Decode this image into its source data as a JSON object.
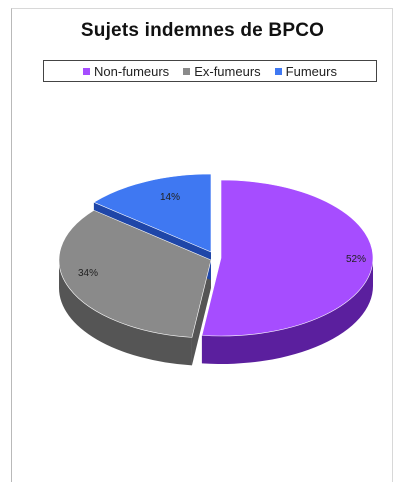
{
  "chart_data": {
    "type": "pie",
    "title": "Sujets indemnes de BPCO",
    "legend_position": "top",
    "categories": [
      "Non-fumeurs",
      "Ex-fumeurs",
      "Fumeurs"
    ],
    "values": [
      52,
      34,
      14
    ],
    "data_labels": [
      "52%",
      "34%",
      "14%"
    ],
    "colors": [
      "#a64dff",
      "#8a8a8a",
      "#3f78f2"
    ],
    "side_colors": [
      "#5b1f9e",
      "#555555",
      "#1f46a8"
    ],
    "style": "3d"
  }
}
